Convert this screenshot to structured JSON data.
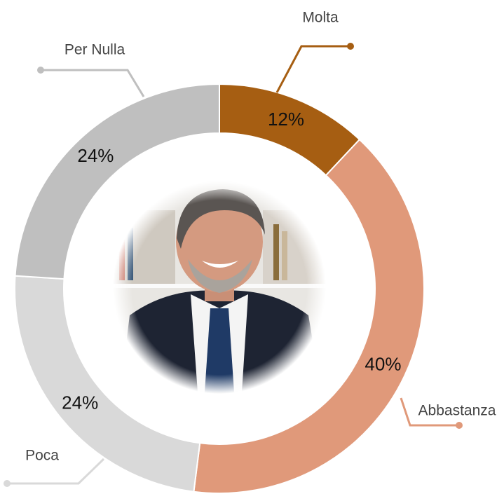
{
  "chart_data": {
    "type": "donut",
    "categories": [
      "Molta",
      "Abbastanza",
      "Poca",
      "Per Nulla"
    ],
    "values": [
      12,
      40,
      24,
      24
    ],
    "value_labels": [
      "12%",
      "40%",
      "24%",
      "24%"
    ],
    "colors": [
      "#a65e12",
      "#e0997a",
      "#d9d9d9",
      "#bfbfbf"
    ]
  }
}
